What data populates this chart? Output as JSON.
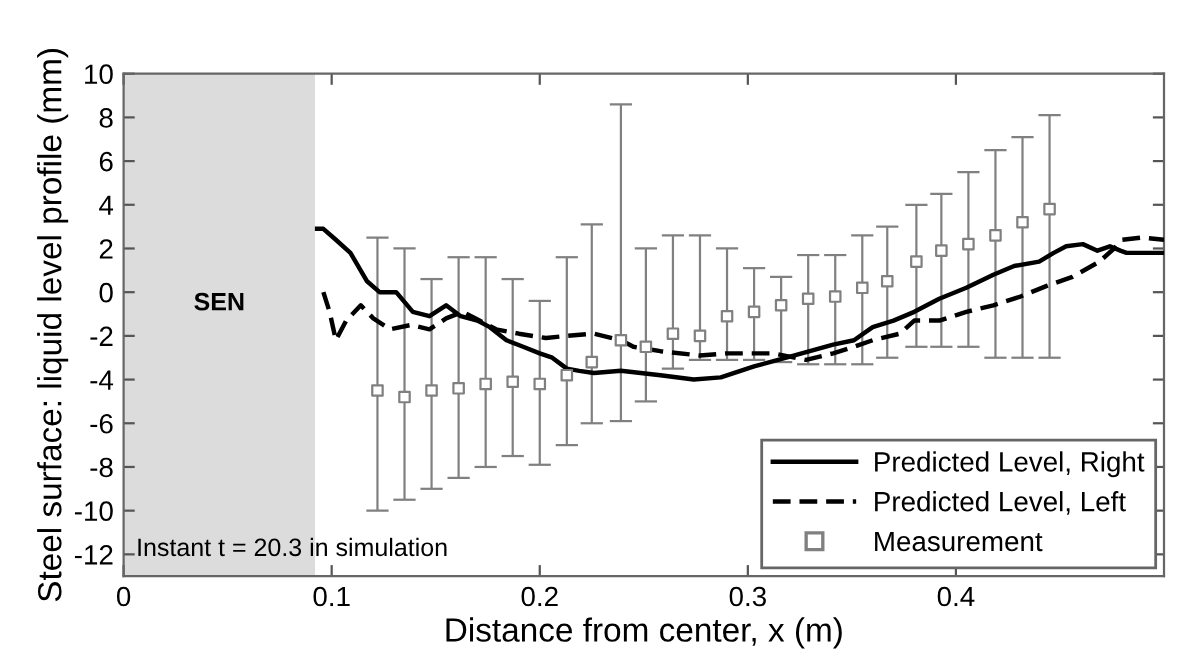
{
  "chart_data": {
    "type": "line",
    "xlabel": "Distance from center, x (m)",
    "ylabel": "Steel surface: liquid level profile (mm)",
    "xlim": [
      0,
      0.5
    ],
    "ylim": [
      -13,
      10
    ],
    "xticks": [
      0,
      0.1,
      0.2,
      0.3,
      0.4
    ],
    "yticks": [
      -12,
      -10,
      -8,
      -6,
      -4,
      -2,
      0,
      2,
      4,
      6,
      8,
      10
    ],
    "grid": false,
    "legend": "bottom right",
    "bands": [
      {
        "axis": "x",
        "from": 0,
        "to": 0.092,
        "label": "SEN",
        "color": "#dcdcdc"
      }
    ],
    "annotations": [
      "Instant t = 20.3 in simulation"
    ],
    "series": [
      {
        "name": "Predicted Level, Right",
        "color": "#000000",
        "line_style": "solid",
        "marker": "none",
        "x": [
          0.093,
          0.096,
          0.102,
          0.109,
          0.117,
          0.123,
          0.131,
          0.139,
          0.147,
          0.155,
          0.162,
          0.17,
          0.176,
          0.184,
          0.192,
          0.2,
          0.206,
          0.213,
          0.219,
          0.226,
          0.239,
          0.258,
          0.274,
          0.287,
          0.303,
          0.322,
          0.341,
          0.351,
          0.36,
          0.37,
          0.38,
          0.392,
          0.405,
          0.418,
          0.428,
          0.44,
          0.447,
          0.453,
          0.461,
          0.468,
          0.474,
          0.479,
          0.482,
          0.5
        ],
        "values": [
          2.9,
          2.9,
          2.4,
          1.8,
          0.5,
          0.0,
          0.0,
          -0.9,
          -1.1,
          -0.6,
          -1.1,
          -1.3,
          -1.6,
          -2.2,
          -2.5,
          -2.8,
          -3.0,
          -3.5,
          -3.6,
          -3.7,
          -3.6,
          -3.8,
          -4.0,
          -3.9,
          -3.4,
          -2.9,
          -2.4,
          -2.2,
          -1.6,
          -1.3,
          -0.9,
          -0.3,
          0.2,
          0.8,
          1.2,
          1.4,
          1.8,
          2.1,
          2.2,
          1.9,
          2.1,
          1.9,
          1.8,
          1.8
        ]
      },
      {
        "name": "Predicted Level, Left",
        "color": "#000000",
        "line_style": "dashed",
        "marker": "none",
        "x": [
          0.096,
          0.099,
          0.102,
          0.107,
          0.114,
          0.12,
          0.128,
          0.138,
          0.147,
          0.155,
          0.163,
          0.171,
          0.179,
          0.19,
          0.203,
          0.213,
          0.226,
          0.239,
          0.245,
          0.258,
          0.277,
          0.29,
          0.312,
          0.328,
          0.341,
          0.351,
          0.36,
          0.373,
          0.38,
          0.392,
          0.405,
          0.418,
          0.431,
          0.444,
          0.456,
          0.469,
          0.476,
          0.48,
          0.489,
          0.5
        ],
        "values": [
          0.0,
          -0.9,
          -2.2,
          -1.3,
          -0.6,
          -1.2,
          -1.7,
          -1.5,
          -1.7,
          -1.2,
          -0.9,
          -1.3,
          -1.7,
          -1.9,
          -2.1,
          -2.0,
          -1.9,
          -2.2,
          -2.5,
          -2.7,
          -2.9,
          -2.8,
          -2.8,
          -3.1,
          -2.8,
          -2.5,
          -2.2,
          -1.9,
          -1.3,
          -1.3,
          -0.9,
          -0.6,
          -0.2,
          0.3,
          0.7,
          1.4,
          2.0,
          2.4,
          2.5,
          2.4
        ]
      },
      {
        "name": "Measurement",
        "type": "scatter",
        "color": "#808080",
        "marker": "square",
        "x": [
          0.122,
          0.135,
          0.148,
          0.161,
          0.174,
          0.187,
          0.2,
          0.213,
          0.225,
          0.239,
          0.251,
          0.264,
          0.277,
          0.29,
          0.303,
          0.316,
          0.329,
          0.342,
          0.355,
          0.367,
          0.381,
          0.393,
          0.406,
          0.419,
          0.432,
          0.445
        ],
        "values": [
          -4.5,
          -4.8,
          -4.5,
          -4.4,
          -4.2,
          -4.1,
          -4.2,
          -3.8,
          -3.2,
          -2.2,
          -2.5,
          -1.9,
          -2.0,
          -1.1,
          -0.9,
          -0.6,
          -0.3,
          -0.2,
          0.2,
          0.5,
          1.4,
          1.9,
          2.2,
          2.6,
          3.2,
          3.8
        ],
        "errors": [
          [
            -10.0,
            2.5
          ],
          [
            -9.5,
            2.0
          ],
          [
            -9.0,
            0.6
          ],
          [
            -8.5,
            1.6
          ],
          [
            -8.0,
            1.6
          ],
          [
            -7.5,
            0.6
          ],
          [
            -7.9,
            -0.4
          ],
          [
            -7.0,
            1.6
          ],
          [
            -6.0,
            3.1
          ],
          [
            -5.9,
            8.6
          ],
          [
            -5.0,
            2.0
          ],
          [
            -3.5,
            2.6
          ],
          [
            -3.1,
            2.6
          ],
          [
            -3.1,
            2.0
          ],
          [
            -3.1,
            1.1
          ],
          [
            -3.2,
            0.7
          ],
          [
            -3.3,
            1.7
          ],
          [
            -3.3,
            1.7
          ],
          [
            -3.3,
            2.6
          ],
          [
            -3.0,
            3.0
          ],
          [
            -2.5,
            4.0
          ],
          [
            -2.5,
            4.5
          ],
          [
            -2.5,
            5.5
          ],
          [
            -3.0,
            6.5
          ],
          [
            -3.0,
            7.1
          ],
          [
            -3.0,
            8.1
          ]
        ]
      }
    ]
  }
}
